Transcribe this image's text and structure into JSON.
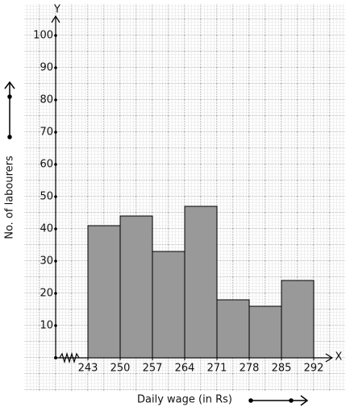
{
  "chart_data": {
    "type": "histogram",
    "bins": [
      243,
      250,
      257,
      264,
      271,
      278,
      285,
      292
    ],
    "values": [
      41,
      44,
      33,
      47,
      18,
      16,
      24
    ],
    "color": "#999999",
    "xlim": [
      236,
      296
    ],
    "ylim": [
      0,
      106
    ],
    "xticks": [
      243,
      250,
      257,
      264,
      271,
      278,
      285,
      292
    ],
    "yticks": [
      10,
      20,
      30,
      40,
      50,
      60,
      70,
      80,
      90,
      100
    ],
    "xlabel": "Daily wage (in Rs)",
    "ylabel": "No. of labourers",
    "x_axis_name": "X",
    "y_axis_name": "Y",
    "grid": true
  }
}
